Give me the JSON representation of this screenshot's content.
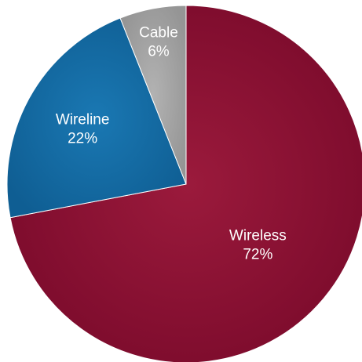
{
  "chart_data": {
    "type": "pie",
    "title": "",
    "start_angle_deg": 0,
    "direction": "clockwise",
    "slices": [
      {
        "label": "Wireless",
        "value": 72,
        "value_label": "72%",
        "color": "#8a0f32"
      },
      {
        "label": "Wireline",
        "value": 22,
        "value_label": "22%",
        "color": "#136aa3"
      },
      {
        "label": "Cable",
        "value": 6,
        "value_label": "6%",
        "color": "#a3a3a3"
      }
    ]
  }
}
